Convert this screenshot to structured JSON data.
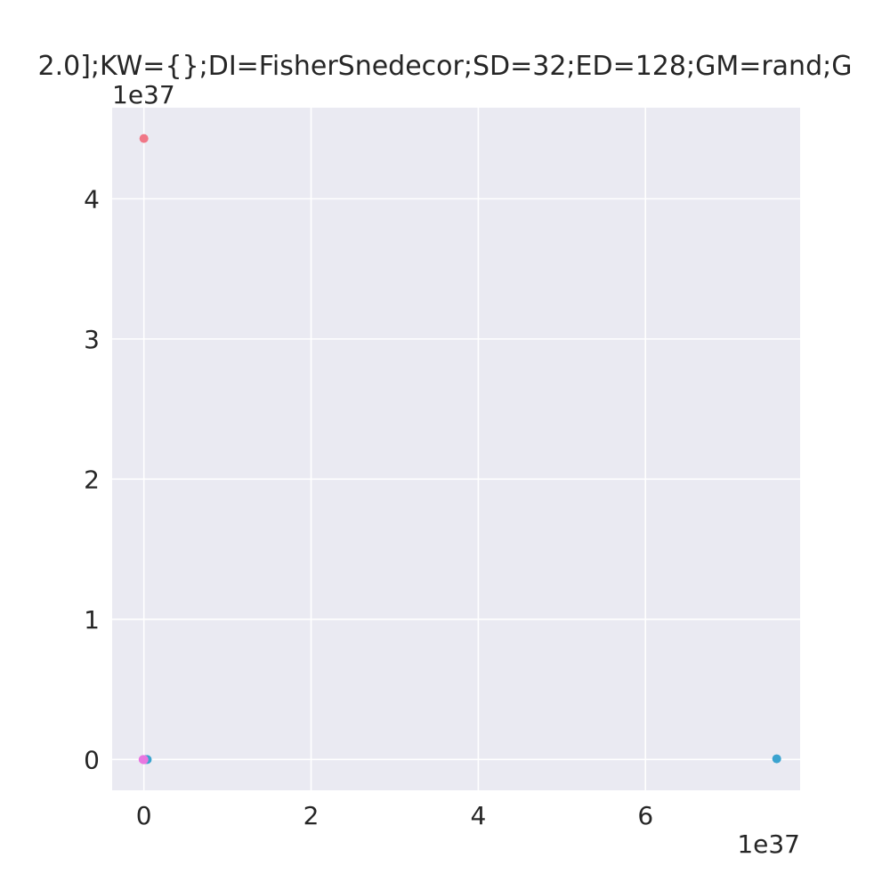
{
  "chart_data": {
    "type": "scatter",
    "title": "2.0];KW={};DI=FisherSnedecor;SD=32;ED=128;GM=rand;G",
    "xlabel": "",
    "ylabel": "",
    "x_offset_text": "1e37",
    "y_offset_text": "1e37",
    "xlim": [
      -0.38,
      7.85
    ],
    "ylim": [
      -0.22,
      4.65
    ],
    "x_ticks": [
      0,
      2,
      4,
      6
    ],
    "x_tick_labels": [
      "0",
      "2",
      "4",
      "6"
    ],
    "y_ticks": [
      0,
      1,
      2,
      3,
      4
    ],
    "y_tick_labels": [
      "0",
      "1",
      "2",
      "3",
      "4"
    ],
    "grid": true,
    "background_color": "#eaeaf2",
    "grid_color": "#ffffff",
    "points": [
      {
        "x": 0.0,
        "y": 4.43,
        "color": "#f07787"
      },
      {
        "x": 7.57,
        "y": 0.005,
        "color": "#3ba3cf"
      },
      {
        "x": 0.04,
        "y": 0.0,
        "color": "#3ba3cf"
      },
      {
        "x": 0.02,
        "y": 0.0,
        "color": "#3ba3cf"
      },
      {
        "x": 0.0,
        "y": 0.0,
        "color": "#e877e0"
      },
      {
        "x": -0.01,
        "y": 0.0,
        "color": "#e877e0"
      },
      {
        "x": 0.0,
        "y": -0.002,
        "color": "#e877e0"
      }
    ]
  }
}
